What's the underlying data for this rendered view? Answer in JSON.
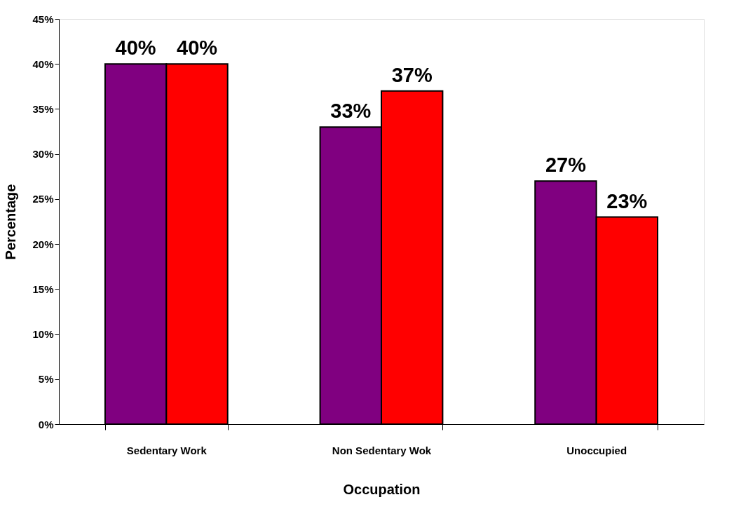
{
  "chart_data": {
    "type": "bar",
    "xlabel": "Occupation",
    "ylabel": "Percentage",
    "categories": [
      "Sedentary Work",
      "Non Sedentary Wok",
      "Unoccupied"
    ],
    "series": [
      {
        "color": "#800080",
        "values": [
          40,
          33,
          27
        ],
        "value_labels": [
          "40%",
          "33%",
          "27%"
        ]
      },
      {
        "color": "#ff0000",
        "values": [
          40,
          37,
          23
        ],
        "value_labels": [
          "40%",
          "37%",
          "23%"
        ]
      }
    ],
    "ylim": [
      0,
      45
    ],
    "yticks": [
      {
        "value": 0,
        "label": "0%"
      },
      {
        "value": 5,
        "label": "5%"
      },
      {
        "value": 10,
        "label": "10%"
      },
      {
        "value": 15,
        "label": "15%"
      },
      {
        "value": 20,
        "label": "20%"
      },
      {
        "value": 25,
        "label": "25%"
      },
      {
        "value": 30,
        "label": "30%"
      },
      {
        "value": 35,
        "label": "35%"
      },
      {
        "value": 40,
        "label": "40%"
      },
      {
        "value": 45,
        "label": "45%"
      }
    ],
    "grid": false,
    "legend": false
  }
}
